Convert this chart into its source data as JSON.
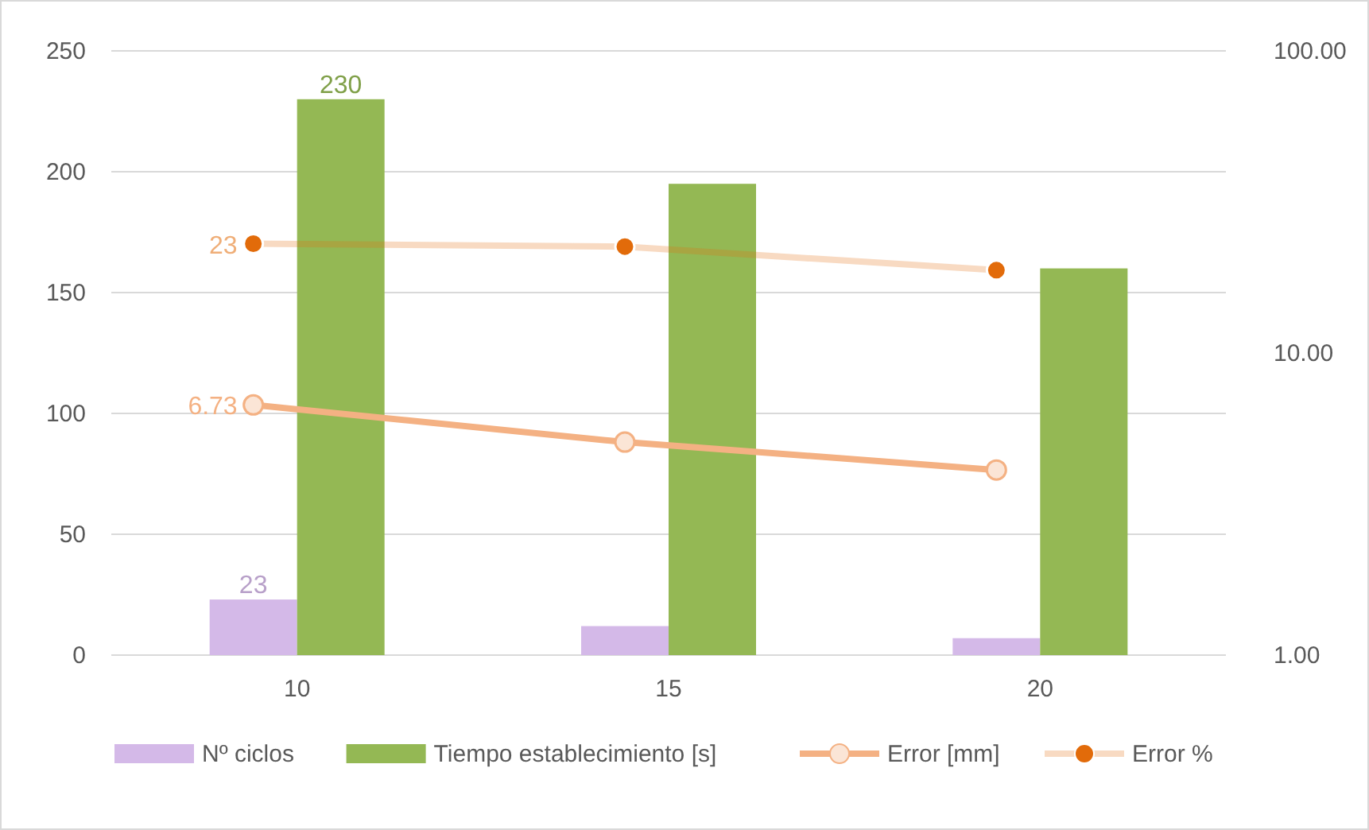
{
  "chart_data": {
    "type": "bar",
    "categories": [
      "10",
      "15",
      "20"
    ],
    "series": [
      {
        "name": "Nº ciclos",
        "color": "#d4b9e8",
        "values": [
          23,
          12,
          7
        ],
        "value_labels": [
          "23",
          null,
          null
        ]
      },
      {
        "name": "Tiempo establecimiento [s]",
        "color": "#94b854",
        "values": [
          230,
          195,
          160
        ],
        "value_labels": [
          "230",
          null,
          null
        ]
      },
      {
        "name": "Error [mm]",
        "type": "line",
        "axis": "y2",
        "color": "#f4b183",
        "marker": "circle",
        "values": [
          6.73,
          5.07,
          4.1
        ],
        "value_labels": [
          "6.73",
          null,
          null
        ]
      },
      {
        "name": "Error %",
        "type": "line",
        "axis": "y2",
        "color": "#e26b0a",
        "marker": "circle",
        "values": [
          23,
          22.5,
          18.8
        ],
        "value_labels": [
          "23",
          null,
          null
        ]
      }
    ],
    "ylim": [
      0,
      250
    ],
    "yticks": [
      0,
      50,
      100,
      150,
      200,
      250
    ],
    "y2lim": [
      1,
      100
    ],
    "y2ticks": [
      {
        "value": 1,
        "label": "1.00"
      },
      {
        "value": 10,
        "label": "10.00"
      },
      {
        "value": 100,
        "label": "100.00"
      }
    ],
    "log": "y2",
    "grid": "y",
    "legend": "bottom"
  }
}
